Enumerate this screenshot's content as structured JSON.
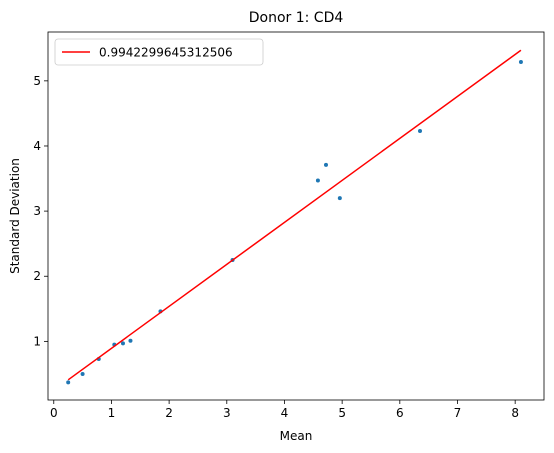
{
  "chart_data": {
    "type": "scatter",
    "title": "Donor 1: CD4",
    "xlabel": "Mean",
    "ylabel": "Standard Deviation",
    "xlim": [
      -0.1,
      8.5
    ],
    "ylim": [
      0.1,
      5.75
    ],
    "xticks": [
      0,
      1,
      2,
      3,
      4,
      5,
      6,
      7,
      8
    ],
    "yticks": [
      1,
      2,
      3,
      4,
      5
    ],
    "grid": false,
    "legend_position": "top-left",
    "series": [
      {
        "kind": "scatter",
        "color": "#1f77b4",
        "x": [
          0.25,
          0.5,
          0.78,
          1.05,
          1.2,
          1.33,
          1.85,
          3.1,
          4.58,
          4.72,
          4.96,
          6.35,
          8.1
        ],
        "y": [
          0.37,
          0.5,
          0.73,
          0.95,
          0.97,
          1.01,
          1.46,
          2.25,
          3.47,
          3.71,
          3.2,
          4.23,
          5.29
        ]
      },
      {
        "kind": "line",
        "name": "0.9942299645312506",
        "color": "#ff0000",
        "x": [
          0.25,
          8.1
        ],
        "y": [
          0.41,
          5.47
        ]
      }
    ]
  }
}
